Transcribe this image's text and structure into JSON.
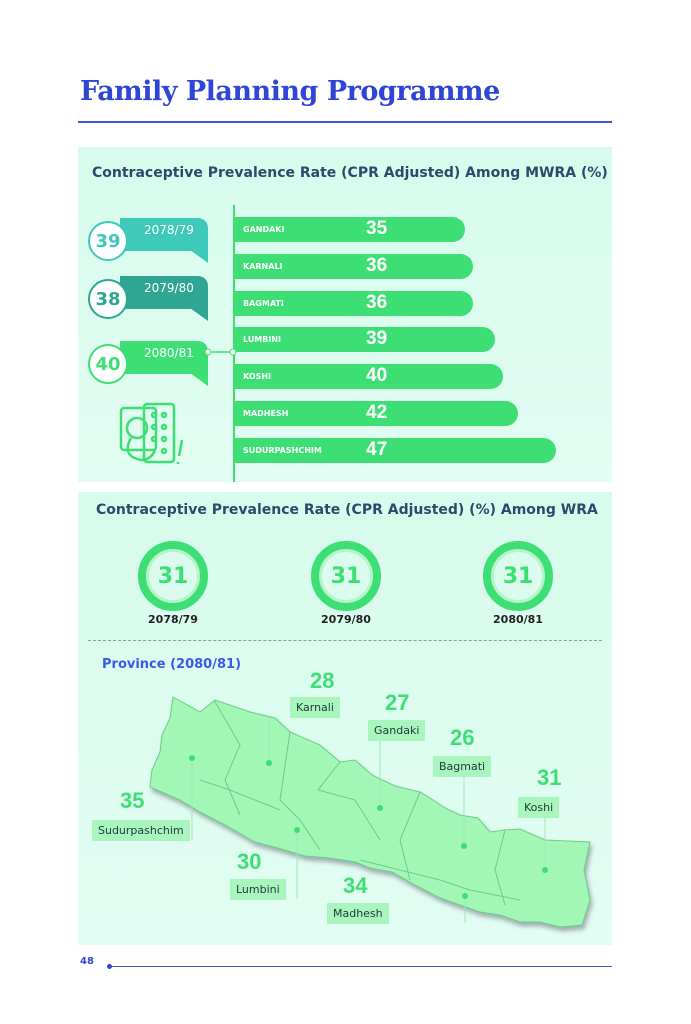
{
  "title": "Family Planning Programme",
  "page_number": "48",
  "colors": {
    "accent": "#3ddf74",
    "title": "#2f45d6"
  },
  "chart_data": [
    {
      "type": "bar",
      "title": "Contraceptive Prevalence Rate (CPR Adjusted) Among MWRA (%)",
      "categories": [
        "GANDAKI",
        "KARNALI",
        "BAGMATI",
        "LUMBINI",
        "KOSHI",
        "MADHESH",
        "SUDURPASHCHIM"
      ],
      "values": [
        35,
        36,
        36,
        39,
        40,
        42,
        47
      ],
      "national": [
        {
          "year": "2078/79",
          "value": "39"
        },
        {
          "year": "2079/80",
          "value": "38"
        },
        {
          "year": "2080/81",
          "value": "40"
        }
      ]
    },
    {
      "type": "table",
      "title": "Contraceptive Prevalence Rate (CPR Adjusted) (%) Among WRA",
      "national": [
        {
          "year": "2078/79",
          "value": "31"
        },
        {
          "year": "2079/80",
          "value": "31"
        },
        {
          "year": "2080/81",
          "value": "31"
        }
      ],
      "map_title": "Province (2080/81)",
      "provinces": [
        {
          "name": "Karnali",
          "value": "28"
        },
        {
          "name": "Gandaki",
          "value": "27"
        },
        {
          "name": "Bagmati",
          "value": "26"
        },
        {
          "name": "Koshi",
          "value": "31"
        },
        {
          "name": "Sudurpashchim",
          "value": "35"
        },
        {
          "name": "Lumbini",
          "value": "30"
        },
        {
          "name": "Madhesh",
          "value": "34"
        }
      ]
    }
  ]
}
